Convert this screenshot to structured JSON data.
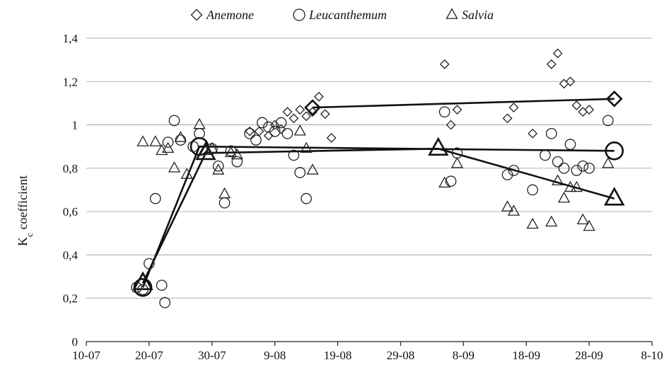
{
  "chart_data": {
    "type": "scatter",
    "xlabel": "",
    "ylabel": "Kc coefficient",
    "ylabel_main": "K",
    "ylabel_sub": "c",
    "ylabel_rest": " coefficient",
    "x_ticks": [
      "10-07",
      "20-07",
      "30-07",
      "9-08",
      "19-08",
      "29-08",
      "8-09",
      "18-09",
      "28-09",
      "8-10"
    ],
    "y_ticks": [
      "0",
      "0,2",
      "0,4",
      "0,6",
      "0,8",
      "1",
      "1,2",
      "1,4"
    ],
    "xlim": [
      0,
      90
    ],
    "ylim": [
      0,
      1.4
    ],
    "x_unit": "days from 10-07",
    "grid": "horizontal",
    "legend_position": "top",
    "series": [
      {
        "name": "Anemone",
        "marker": "diamond",
        "points": [
          [
            26,
            0.97
          ],
          [
            27.5,
            0.97
          ],
          [
            29,
            0.95
          ],
          [
            30,
            1.0
          ],
          [
            31,
            0.98
          ],
          [
            32,
            1.06
          ],
          [
            33,
            1.03
          ],
          [
            34,
            1.07
          ],
          [
            35,
            1.04
          ],
          [
            36,
            1.06
          ],
          [
            37,
            1.13
          ],
          [
            38,
            1.05
          ],
          [
            39,
            0.94
          ],
          [
            57,
            1.28
          ],
          [
            58,
            1.0
          ],
          [
            59,
            1.07
          ],
          [
            67,
            1.03
          ],
          [
            68,
            1.08
          ],
          [
            71,
            0.96
          ],
          [
            74,
            1.28
          ],
          [
            75,
            1.33
          ],
          [
            76,
            1.19
          ],
          [
            77,
            1.2
          ],
          [
            78,
            1.09
          ],
          [
            79,
            1.06
          ],
          [
            80,
            1.07
          ]
        ],
        "trend": [
          [
            36,
            1.08
          ],
          [
            84,
            1.12
          ]
        ]
      },
      {
        "name": "Leucanthemum",
        "marker": "circle",
        "points": [
          [
            8,
            0.25
          ],
          [
            9,
            0.24
          ],
          [
            10,
            0.36
          ],
          [
            11,
            0.66
          ],
          [
            12,
            0.26
          ],
          [
            12.5,
            0.18
          ],
          [
            13,
            0.92
          ],
          [
            14,
            1.02
          ],
          [
            15,
            0.93
          ],
          [
            17,
            0.9
          ],
          [
            18,
            0.96
          ],
          [
            20,
            0.89
          ],
          [
            21,
            0.81
          ],
          [
            22,
            0.64
          ],
          [
            23,
            0.88
          ],
          [
            24,
            0.83
          ],
          [
            26,
            0.96
          ],
          [
            27,
            0.93
          ],
          [
            28,
            1.01
          ],
          [
            29,
            0.99
          ],
          [
            30,
            0.97
          ],
          [
            31,
            1.01
          ],
          [
            32,
            0.96
          ],
          [
            33,
            0.86
          ],
          [
            34,
            0.78
          ],
          [
            35,
            0.66
          ],
          [
            57,
            1.06
          ],
          [
            58,
            0.74
          ],
          [
            59,
            0.87
          ],
          [
            67,
            0.77
          ],
          [
            68,
            0.79
          ],
          [
            71,
            0.7
          ],
          [
            73,
            0.86
          ],
          [
            74,
            0.96
          ],
          [
            75,
            0.83
          ],
          [
            76,
            0.8
          ],
          [
            77,
            0.91
          ],
          [
            78,
            0.79
          ],
          [
            79,
            0.81
          ],
          [
            80,
            0.8
          ],
          [
            83,
            1.02
          ]
        ],
        "trend": [
          [
            9,
            0.25
          ],
          [
            18,
            0.9
          ],
          [
            84,
            0.88
          ]
        ]
      },
      {
        "name": "Salvia",
        "marker": "triangle",
        "points": [
          [
            9,
            0.92
          ],
          [
            11,
            0.92
          ],
          [
            12,
            0.88
          ],
          [
            13,
            0.89
          ],
          [
            14,
            0.8
          ],
          [
            15,
            0.94
          ],
          [
            16,
            0.77
          ],
          [
            18,
            1.0
          ],
          [
            19,
            0.88
          ],
          [
            20,
            0.89
          ],
          [
            21,
            0.79
          ],
          [
            22,
            0.68
          ],
          [
            23,
            0.87
          ],
          [
            24,
            0.86
          ],
          [
            34,
            0.97
          ],
          [
            35,
            0.89
          ],
          [
            36,
            0.79
          ],
          [
            57,
            0.73
          ],
          [
            59,
            0.82
          ],
          [
            67,
            0.62
          ],
          [
            68,
            0.6
          ],
          [
            71,
            0.54
          ],
          [
            74,
            0.55
          ],
          [
            75,
            0.74
          ],
          [
            76,
            0.66
          ],
          [
            77,
            0.71
          ],
          [
            78,
            0.71
          ],
          [
            79,
            0.56
          ],
          [
            80,
            0.53
          ],
          [
            83,
            0.82
          ]
        ],
        "trend": [
          [
            9,
            0.27
          ],
          [
            19,
            0.87
          ],
          [
            56,
            0.89
          ],
          [
            84,
            0.66
          ]
        ]
      }
    ]
  }
}
